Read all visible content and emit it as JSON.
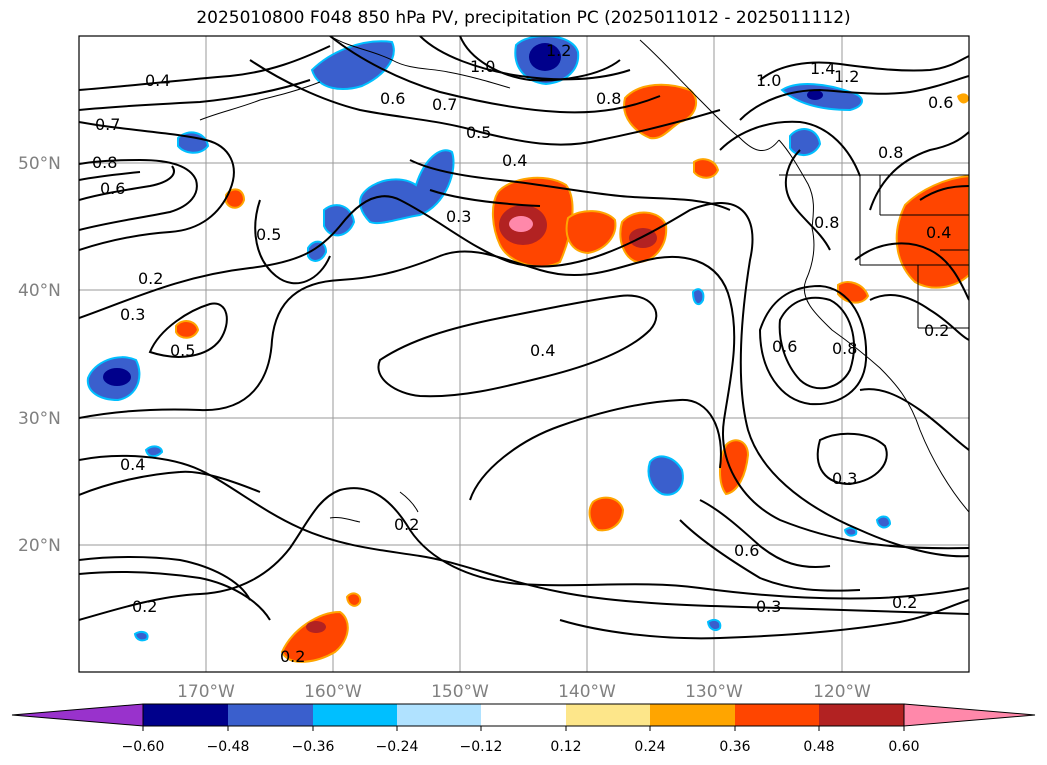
{
  "title": "2025010800 F048 850 hPa PV, precipitation PC (2025011012 - 2025011112)",
  "map": {
    "lon_labels": [
      "170°W",
      "160°W",
      "150°W",
      "140°W",
      "130°W",
      "120°W"
    ],
    "lat_labels": [
      "50°N",
      "40°N",
      "30°N",
      "20°N"
    ],
    "contour_labels": [
      "0.4",
      "0.7",
      "0.8",
      "0.6",
      "0.5",
      "0.2",
      "0.3",
      "0.5",
      "0.4",
      "0.2",
      "1.0",
      "1.2",
      "0.6",
      "0.7",
      "0.5",
      "0.4",
      "0.3",
      "0.8",
      "1.0",
      "1.4",
      "1.2",
      "0.6",
      "0.8",
      "0.8",
      "0.4",
      "0.4",
      "0.2",
      "0.6",
      "0.8",
      "0.3",
      "0.6",
      "0.3",
      "0.2",
      "0.2",
      "0.2"
    ]
  },
  "colorbar": {
    "ticks": [
      "−0.60",
      "−0.48",
      "−0.36",
      "−0.24",
      "−0.12",
      "0.12",
      "0.24",
      "0.36",
      "0.48",
      "0.60"
    ],
    "colors": [
      "#9932cc",
      "#00008b",
      "#3a5fcd",
      "#00bfff",
      "#b0e2ff",
      "#ffffff",
      "#fde68a",
      "#ffa500",
      "#ff4500",
      "#b22222",
      "#ff88aa"
    ]
  }
}
